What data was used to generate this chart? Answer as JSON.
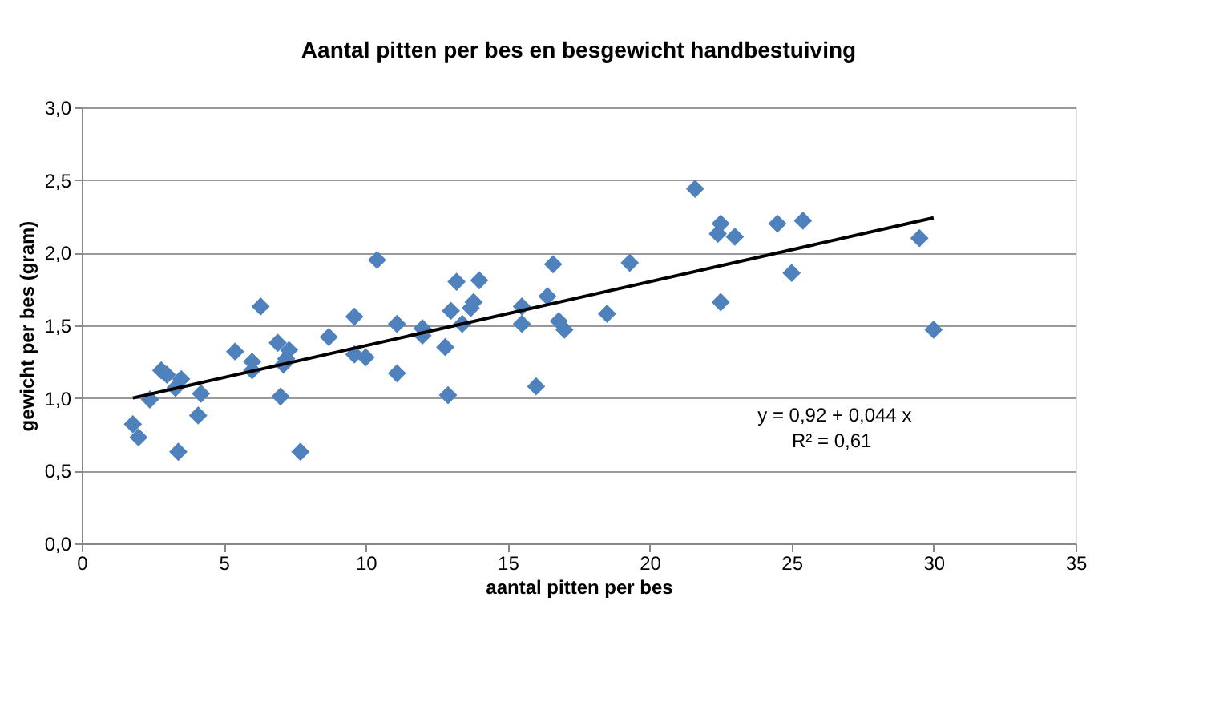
{
  "chart_data": {
    "type": "scatter",
    "title": "Aantal pitten per bes en besgewicht handbestuiving",
    "xlabel": "aantal pitten per bes",
    "ylabel": "gewicht per bes (gram)",
    "series": [
      {
        "color": "#4f81bd",
        "marker": "diamond",
        "x": [
          1.8,
          2.0,
          2.4,
          2.8,
          3.0,
          3.3,
          3.5,
          3.4,
          4.1,
          4.2,
          5.4,
          6.0,
          6.0,
          6.3,
          6.9,
          7.0,
          7.1,
          7.3,
          7.2,
          7.7,
          8.7,
          9.6,
          9.6,
          10.0,
          10.4,
          11.1,
          11.1,
          12.0,
          12.0,
          12.9,
          12.8,
          13.0,
          13.2,
          13.4,
          13.7,
          13.8,
          14.0,
          15.5,
          15.5,
          16.0,
          16.4,
          16.6,
          16.8,
          17.0,
          18.5,
          19.3,
          21.6,
          22.4,
          22.5,
          22.5,
          23.0,
          24.5,
          25.0,
          25.4,
          29.5,
          30.0
        ],
        "values": [
          0.82,
          0.73,
          0.99,
          1.19,
          1.16,
          1.07,
          1.13,
          0.63,
          0.88,
          1.03,
          1.32,
          1.19,
          1.25,
          1.63,
          1.38,
          1.01,
          1.23,
          1.33,
          1.27,
          0.63,
          1.42,
          1.56,
          1.3,
          1.28,
          1.95,
          1.51,
          1.17,
          1.43,
          1.48,
          1.02,
          1.35,
          1.6,
          1.8,
          1.51,
          1.62,
          1.66,
          1.81,
          1.63,
          1.51,
          1.08,
          1.7,
          1.92,
          1.53,
          1.47,
          1.58,
          1.93,
          2.44,
          2.13,
          2.2,
          1.66,
          2.11,
          2.2,
          1.86,
          2.22,
          2.1,
          1.47
        ]
      },
      {
        "type": "line",
        "color": "#000000",
        "line_style": "solid",
        "x": [
          1.8,
          30
        ],
        "values": [
          1.0,
          2.24
        ]
      }
    ],
    "xlim": [
      0,
      35
    ],
    "xticks": [
      0,
      5,
      10,
      15,
      20,
      25,
      30,
      35
    ],
    "ylim": [
      0,
      3
    ],
    "yticks": [
      {
        "value": 0,
        "label": "0,0"
      },
      {
        "value": 0.5,
        "label": "0,5"
      },
      {
        "value": 1,
        "label": "1,0"
      },
      {
        "value": 1.5,
        "label": "1,5"
      },
      {
        "value": 2,
        "label": "2,0"
      },
      {
        "value": 2.5,
        "label": "2,5"
      },
      {
        "value": 3,
        "label": "3,0"
      }
    ],
    "grid": "y",
    "annotations": [
      "y = 0,92 + 0,044 x",
      "R² = 0,61"
    ]
  }
}
